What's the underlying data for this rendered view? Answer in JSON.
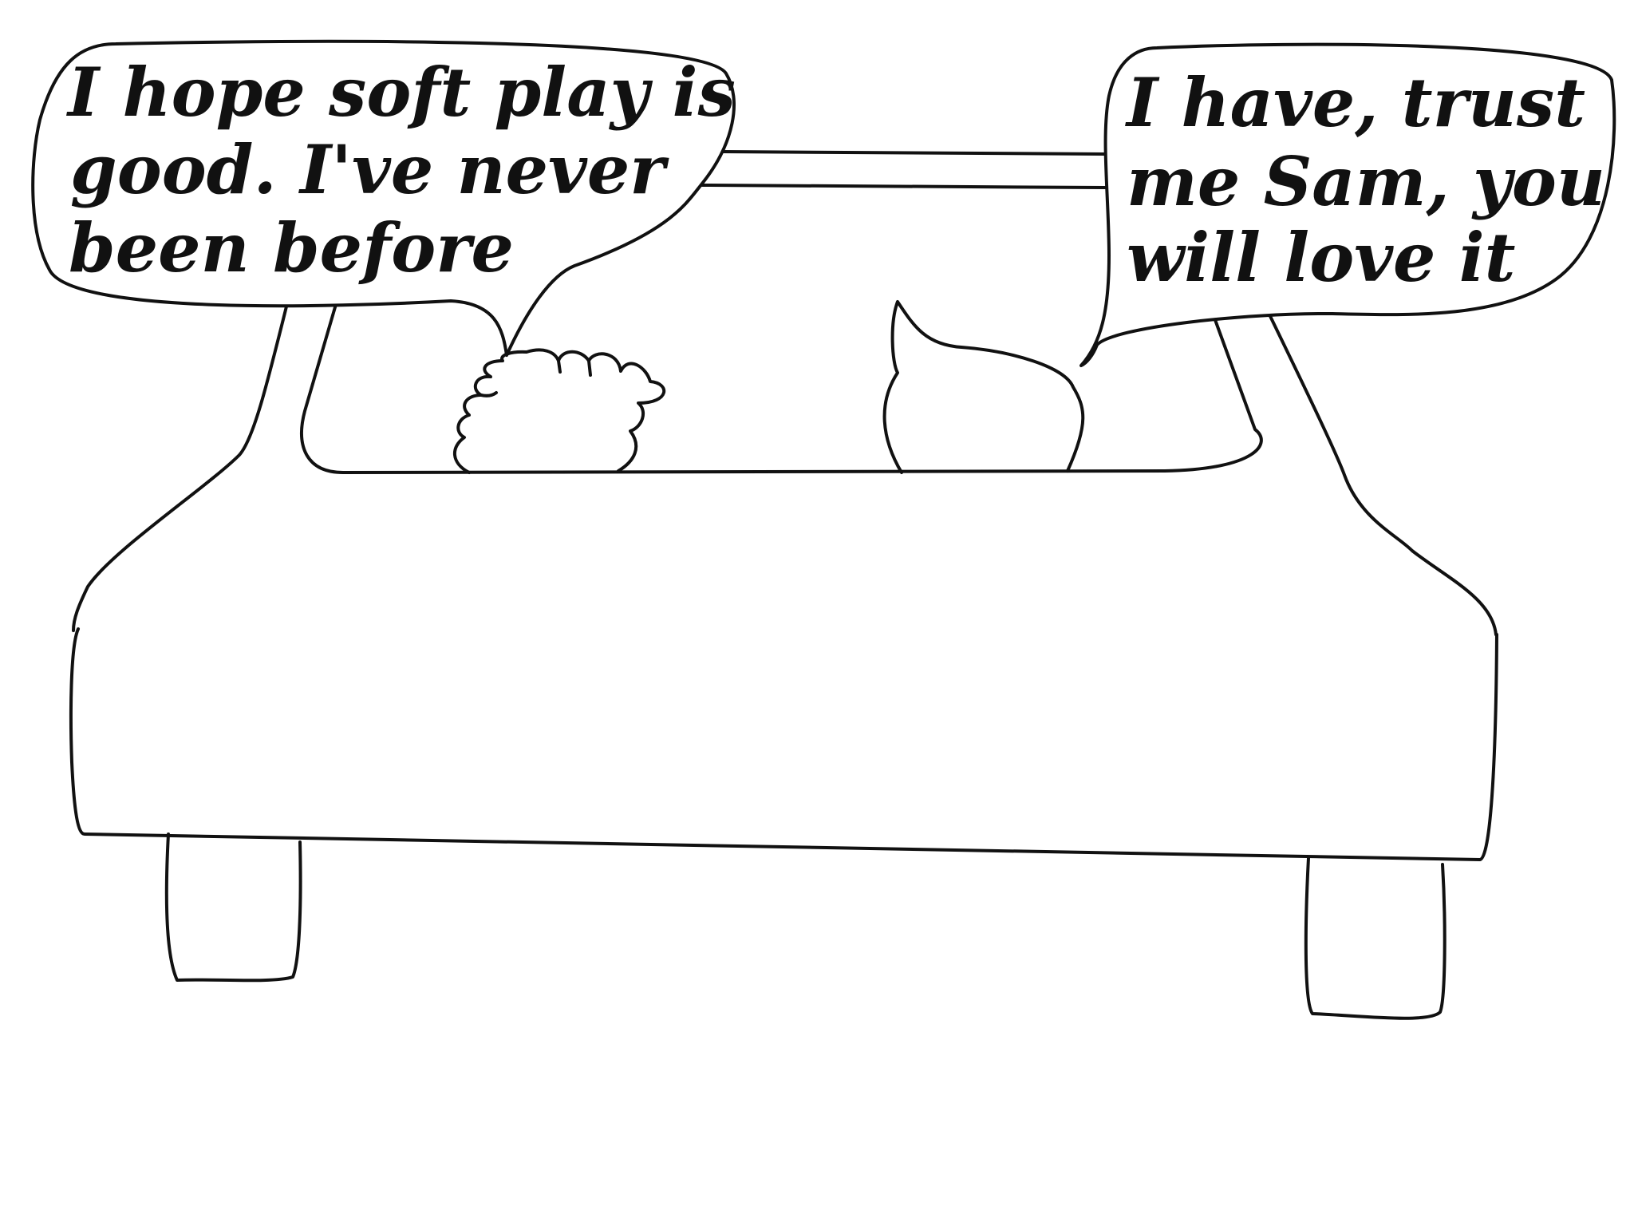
{
  "left_bubble": {
    "lines": [
      "I hope soft play is",
      "good. I've never",
      "been before"
    ]
  },
  "right_bubble": {
    "lines": [
      "I have, trust",
      "me Sam, you",
      "will love it"
    ]
  },
  "colors": {
    "line": "#111111",
    "background": "#ffffff"
  }
}
